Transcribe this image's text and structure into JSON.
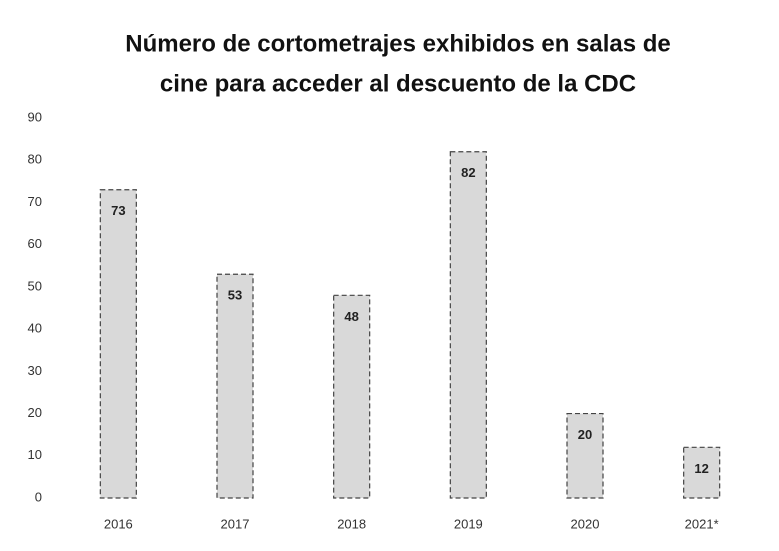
{
  "chart_data": {
    "type": "bar",
    "title": [
      "Número de cortometrajes exhibidos en salas de",
      "cine para acceder al descuento de la CDC"
    ],
    "categories": [
      "2016",
      "2017",
      "2018",
      "2019",
      "2020",
      "2021*"
    ],
    "values": [
      73,
      53,
      48,
      82,
      20,
      12
    ],
    "color": "#d9d9d9",
    "ylim": [
      0,
      90
    ],
    "yticks": [
      0,
      10,
      20,
      30,
      40,
      50,
      60,
      70,
      80,
      90
    ],
    "grid": false
  }
}
